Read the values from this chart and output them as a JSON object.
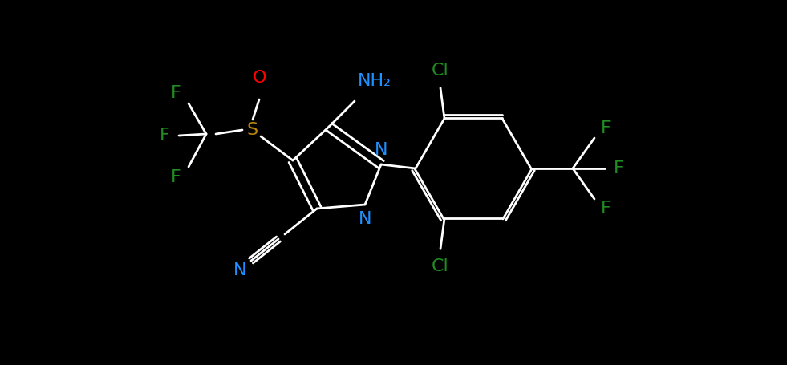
{
  "background_color": "#000000",
  "bond_color": "#ffffff",
  "atom_colors": {
    "N": "#1e90ff",
    "O": "#ff0000",
    "S": "#b8860b",
    "F": "#228b22",
    "Cl": "#228b22",
    "NH2": "#1e90ff"
  },
  "figsize": [
    9.81,
    4.55
  ],
  "dpi": 100,
  "lw": 2.0,
  "fontsize": 16
}
